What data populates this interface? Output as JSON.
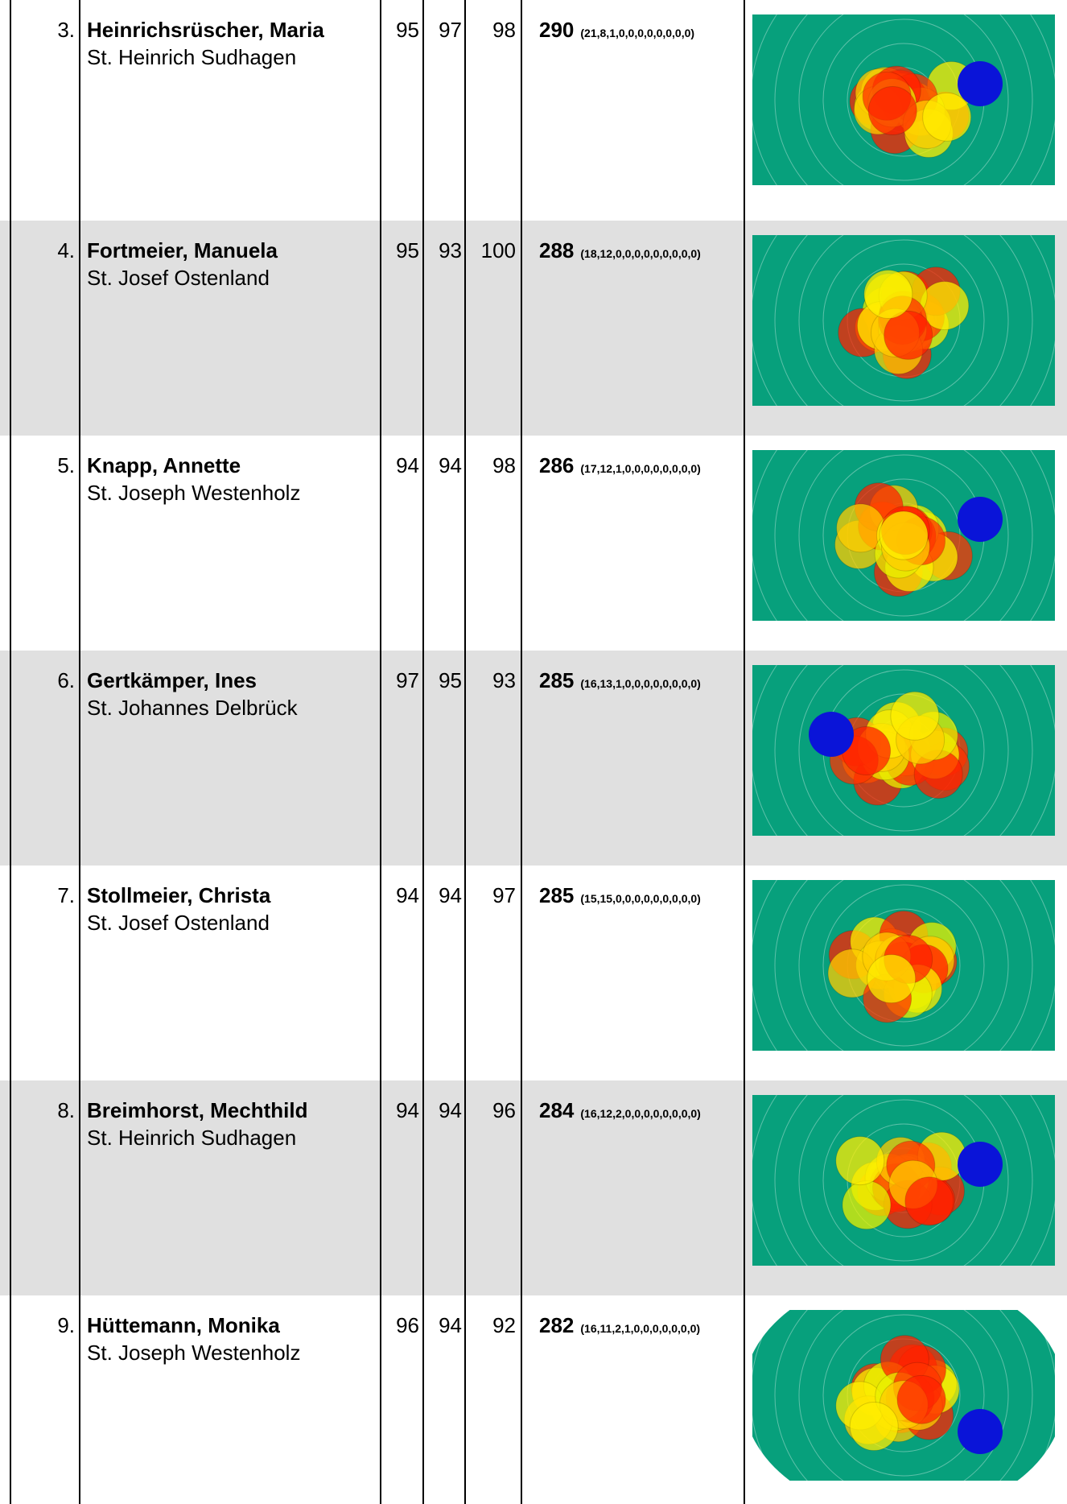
{
  "table": {
    "rows": [
      {
        "rank": "3.",
        "name": "Heinrichsrüscher, Maria",
        "club": "St. Heinrich Sudhagen",
        "scores": [
          95,
          97,
          98
        ],
        "total": 290,
        "detail": "(21,8,1,0,0,0,0,0,0,0,0)"
      },
      {
        "rank": "4.",
        "name": "Fortmeier, Manuela",
        "club": "St. Josef Ostenland",
        "scores": [
          95,
          93,
          100
        ],
        "total": 288,
        "detail": "(18,12,0,0,0,0,0,0,0,0,0)"
      },
      {
        "rank": "5.",
        "name": "Knapp, Annette",
        "club": "St. Joseph Westenholz",
        "scores": [
          94,
          94,
          98
        ],
        "total": 286,
        "detail": "(17,12,1,0,0,0,0,0,0,0,0)"
      },
      {
        "rank": "6.",
        "name": "Gertkämper, Ines",
        "club": "St. Johannes Delbrück",
        "scores": [
          97,
          95,
          93
        ],
        "total": 285,
        "detail": "(16,13,1,0,0,0,0,0,0,0,0)"
      },
      {
        "rank": "7.",
        "name": "Stollmeier, Christa",
        "club": "St. Josef Ostenland",
        "scores": [
          94,
          94,
          97
        ],
        "total": 285,
        "detail": "(15,15,0,0,0,0,0,0,0,0,0)"
      },
      {
        "rank": "8.",
        "name": "Breimhorst, Mechthild",
        "club": "St. Heinrich Sudhagen",
        "scores": [
          94,
          94,
          96
        ],
        "total": 284,
        "detail": "(16,12,2,0,0,0,0,0,0,0,0)"
      },
      {
        "rank": "9.",
        "name": "Hüttemann, Monika",
        "club": "St. Joseph Westenholz",
        "scores": [
          96,
          94,
          92
        ],
        "total": 282,
        "detail": "(16,11,2,1,0,0,0,0,0,0,0)"
      }
    ]
  }
}
